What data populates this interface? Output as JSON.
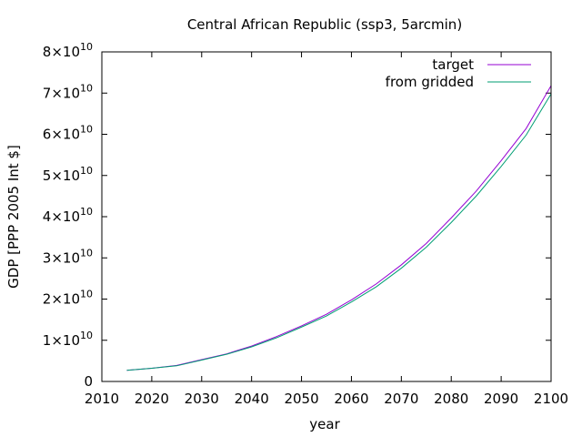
{
  "chart_data": {
    "type": "line",
    "title": "Central African Republic (ssp3, 5arcmin)",
    "xlabel": "year",
    "ylabel": "GDP [PPP 2005 Int $]",
    "xlim": [
      2010,
      2100
    ],
    "ylim": [
      0,
      80000000000
    ],
    "x_ticks": [
      "2010",
      "2020",
      "2030",
      "2040",
      "2050",
      "2060",
      "2070",
      "2080",
      "2090",
      "2100"
    ],
    "y_ticks": [
      {
        "mant": "0",
        "exp": ""
      },
      {
        "mant": "1×10",
        "exp": "10"
      },
      {
        "mant": "2×10",
        "exp": "10"
      },
      {
        "mant": "3×10",
        "exp": "10"
      },
      {
        "mant": "4×10",
        "exp": "10"
      },
      {
        "mant": "5×10",
        "exp": "10"
      },
      {
        "mant": "6×10",
        "exp": "10"
      },
      {
        "mant": "7×10",
        "exp": "10"
      },
      {
        "mant": "8×10",
        "exp": "10"
      }
    ],
    "legend_position": "top-right",
    "grid": false,
    "series": [
      {
        "name": "target",
        "color": "#9400d3",
        "x": [
          2015,
          2020,
          2025,
          2030,
          2035,
          2040,
          2045,
          2050,
          2055,
          2060,
          2065,
          2070,
          2075,
          2080,
          2085,
          2090,
          2095,
          2100
        ],
        "y": [
          2700000000,
          3200000000,
          3900000000,
          5300000000,
          6700000000,
          8600000000,
          10900000000,
          13500000000,
          16300000000,
          19800000000,
          23700000000,
          28300000000,
          33500000000,
          39700000000,
          46200000000,
          53600000000,
          61400000000,
          71800000000
        ]
      },
      {
        "name": "from gridded",
        "color": "#009e73",
        "x": [
          2015,
          2020,
          2025,
          2030,
          2035,
          2040,
          2045,
          2050,
          2055,
          2060,
          2065,
          2070,
          2075,
          2080,
          2085,
          2090,
          2095,
          2100
        ],
        "y": [
          2700000000,
          3200000000,
          3800000000,
          5200000000,
          6600000000,
          8400000000,
          10600000000,
          13200000000,
          15900000000,
          19300000000,
          23000000000,
          27500000000,
          32600000000,
          38600000000,
          45000000000,
          52200000000,
          59800000000,
          69800000000
        ]
      }
    ]
  }
}
